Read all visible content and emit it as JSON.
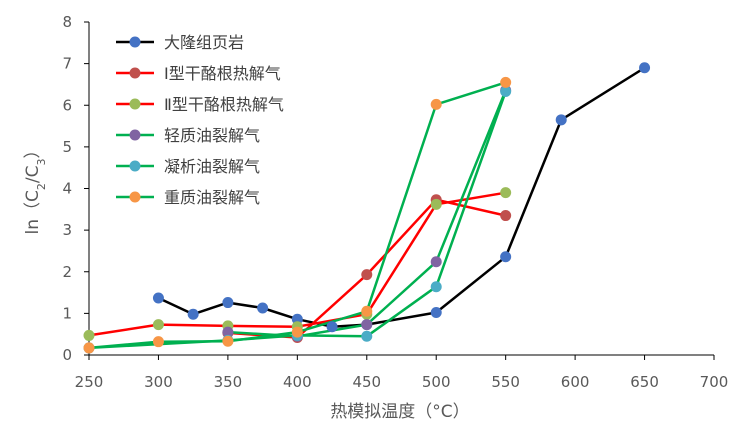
{
  "chart_data": {
    "type": "line",
    "title": "",
    "xlabel": "热模拟温度（°C）",
    "ylabel_parts": {
      "prefix": "ln（C",
      "sub1": "2",
      "mid": "/C",
      "sub2": "3",
      "suffix": "）"
    },
    "xlim": [
      250,
      700
    ],
    "ylim": [
      0,
      8
    ],
    "xticks": [
      250,
      300,
      350,
      400,
      450,
      500,
      550,
      600,
      650,
      700
    ],
    "yticks": [
      0,
      1,
      2,
      3,
      4,
      5,
      6,
      7,
      8
    ],
    "grid": false,
    "legend_position": "top-left",
    "series": [
      {
        "name": "大隆组页岩",
        "line_color": "#000000",
        "marker_color": "#4472C4",
        "x": [
          300,
          325,
          350,
          375,
          400,
          425,
          450,
          500,
          550,
          590,
          650
        ],
        "y": [
          1.37,
          0.98,
          1.26,
          1.13,
          0.86,
          0.68,
          0.73,
          1.02,
          2.36,
          5.65,
          6.9
        ]
      },
      {
        "name": "Ⅰ型干酪根热解气",
        "line_color": "#FF0000",
        "marker_color": "#C0504D",
        "x": [
          350,
          400,
          450,
          500,
          550
        ],
        "y": [
          0.53,
          0.42,
          1.93,
          3.73,
          3.35
        ]
      },
      {
        "name": "Ⅱ型干酪根热解气",
        "line_color": "#FF0000",
        "marker_color": "#9BBB59",
        "x": [
          250,
          300,
          350,
          400,
          450,
          500,
          550
        ],
        "y": [
          0.47,
          0.73,
          0.7,
          0.68,
          0.98,
          3.62,
          3.9
        ]
      },
      {
        "name": "轻质油裂解气",
        "line_color": "#00B050",
        "marker_color": "#8064A2",
        "x": [
          350,
          400,
          450,
          500,
          550
        ],
        "y": [
          0.55,
          0.45,
          0.73,
          2.24,
          6.36
        ]
      },
      {
        "name": "凝析油裂解气",
        "line_color": "#00B050",
        "marker_color": "#4BACC6",
        "x": [
          250,
          350,
          400,
          450,
          500,
          550
        ],
        "y": [
          0.17,
          0.35,
          0.47,
          0.45,
          1.64,
          6.33
        ]
      },
      {
        "name": "重质油裂解气",
        "line_color": "#00B050",
        "marker_color": "#F79646",
        "x": [
          250,
          300,
          350,
          400,
          450,
          500,
          550
        ],
        "y": [
          0.17,
          0.32,
          0.33,
          0.55,
          1.05,
          6.02,
          6.55
        ]
      }
    ]
  }
}
